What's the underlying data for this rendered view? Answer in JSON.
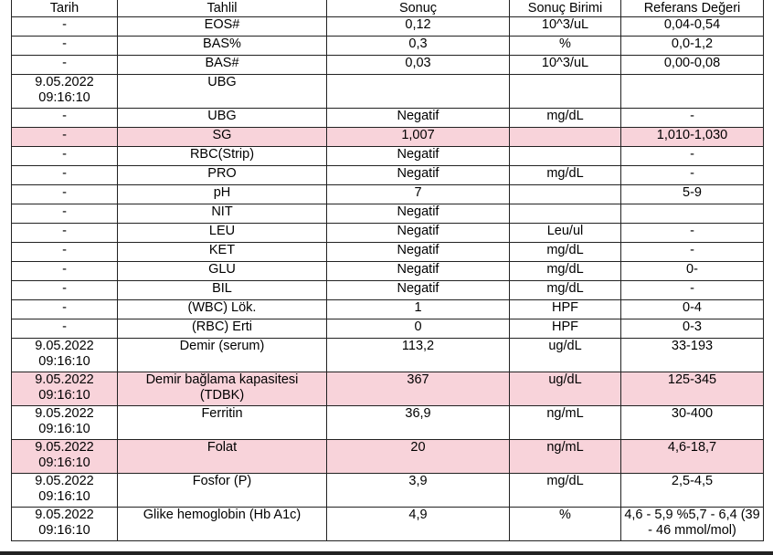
{
  "table": {
    "header": [
      "Tarih",
      "Tahlil",
      "Sonuç",
      "Sonuç Birimi",
      "Referans Değeri"
    ],
    "rows": [
      {
        "cells": [
          "-",
          "EOS#",
          "0,12",
          "10^3/uL",
          "0,04-0,54"
        ]
      },
      {
        "cells": [
          "-",
          "BAS%",
          "0,3",
          "%",
          "0,0-1,2"
        ]
      },
      {
        "cells": [
          "-",
          "BAS#",
          "0,03",
          "10^3/uL",
          "0,00-0,08"
        ]
      },
      {
        "cells": [
          "9.05.2022 09:16:10",
          "UBG",
          null,
          null,
          null
        ]
      },
      {
        "cells": [
          "-",
          "UBG",
          "Negatif",
          "mg/dL",
          "-"
        ]
      },
      {
        "cells": [
          "-",
          "SG",
          "1,007",
          null,
          "1,010-1,030"
        ],
        "highlight": true
      },
      {
        "cells": [
          "-",
          "RBC(Strip)",
          "Negatif",
          null,
          "-"
        ]
      },
      {
        "cells": [
          "-",
          "PRO",
          "Negatif",
          "mg/dL",
          "-"
        ]
      },
      {
        "cells": [
          "-",
          "pH",
          "7",
          null,
          "5-9"
        ]
      },
      {
        "cells": [
          "-",
          "NIT",
          "Negatif",
          null,
          null
        ]
      },
      {
        "cells": [
          "-",
          "LEU",
          "Negatif",
          "Leu/ul",
          "-"
        ]
      },
      {
        "cells": [
          "-",
          "KET",
          "Negatif",
          "mg/dL",
          "-"
        ]
      },
      {
        "cells": [
          "-",
          "GLU",
          "Negatif",
          "mg/dL",
          "0-"
        ]
      },
      {
        "cells": [
          "-",
          "BIL",
          "Negatif",
          "mg/dL",
          "-"
        ]
      },
      {
        "cells": [
          "-",
          "(WBC) Lök.",
          "1",
          "HPF",
          "0-4"
        ]
      },
      {
        "cells": [
          "-",
          "(RBC) Erti",
          "0",
          "HPF",
          "0-3"
        ]
      },
      {
        "cells": [
          "9.05.2022 09:16:10",
          "Demir (serum)",
          "113,2",
          "ug/dL",
          "33-193"
        ]
      },
      {
        "cells": [
          "9.05.2022 09:16:10",
          "Demir bağlama kapasitesi (TDBK)",
          "367",
          "ug/dL",
          "125-345"
        ],
        "highlight": true
      },
      {
        "cells": [
          "9.05.2022 09:16:10",
          "Ferritin",
          "36,9",
          "ng/mL",
          "30-400"
        ]
      },
      {
        "cells": [
          "9.05.2022 09:16:10",
          "Folat",
          "20",
          "ng/mL",
          "4,6-18,7"
        ],
        "highlight": true
      },
      {
        "cells": [
          "9.05.2022 09:16:10",
          "Fosfor (P)",
          "3,9",
          "mg/dL",
          "2,5-4,5"
        ]
      },
      {
        "cells": [
          "9.05.2022 09:16:10",
          "Glike hemoglobin (Hb A1c)",
          "4,9",
          "%",
          "4,6 - 5,9 %5,7 - 6,4 (39 - 46 mmol/mol)"
        ]
      }
    ]
  }
}
